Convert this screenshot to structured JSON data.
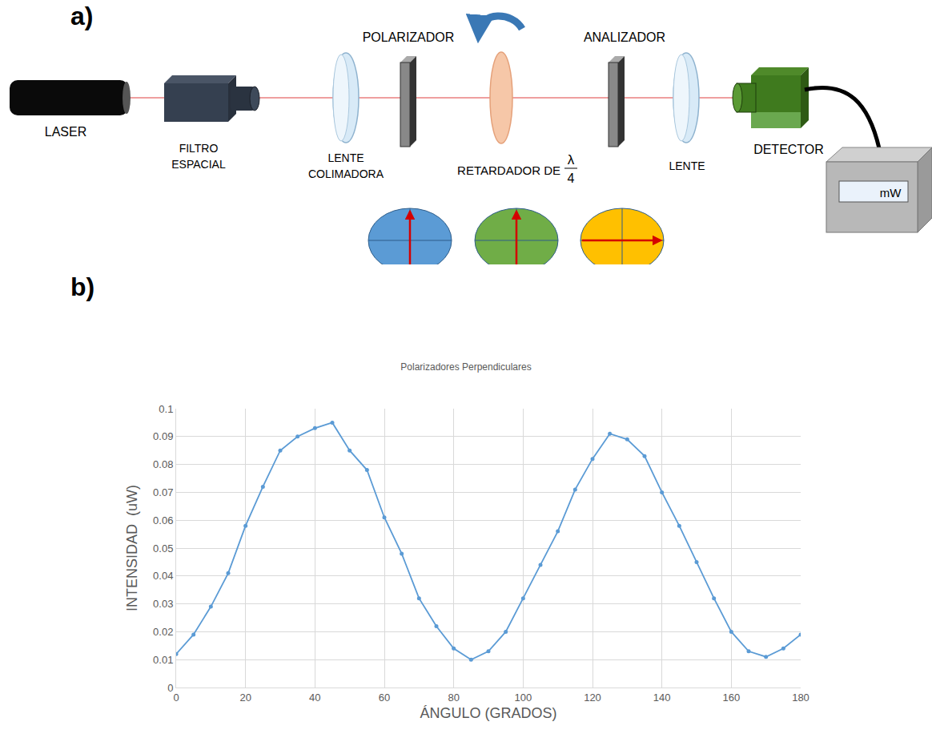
{
  "panel_labels": [
    "a)",
    "b)"
  ],
  "diagram": {
    "components": [
      {
        "label": "LASER"
      },
      {
        "label": "FILTRO ESPACIAL"
      },
      {
        "label": "LENTE COLIMADORA"
      },
      {
        "label": "POLARIZADOR"
      },
      {
        "label": "RETARDADOR DE",
        "fraction": {
          "numerator": "λ",
          "denominator": "4"
        }
      },
      {
        "label": "ANALIZADOR"
      },
      {
        "label": "LENTE"
      },
      {
        "label": "DETECTOR"
      }
    ],
    "meter_unit": "mW"
  },
  "chart_data": {
    "type": "line",
    "title": "Polarizadores Perpendiculares",
    "x_label": "ÁNGULO (GRADOS)",
    "y_label": "INTENSIDAD  (uW)",
    "x": [
      0,
      5,
      10,
      15,
      20,
      25,
      30,
      35,
      40,
      45,
      50,
      55,
      60,
      65,
      70,
      75,
      80,
      85,
      90,
      95,
      100,
      105,
      110,
      115,
      120,
      125,
      130,
      135,
      140,
      145,
      150,
      155,
      160,
      165,
      170,
      175,
      180
    ],
    "values": [
      0.012,
      0.019,
      0.029,
      0.041,
      0.058,
      0.072,
      0.085,
      0.09,
      0.093,
      0.095,
      0.085,
      0.078,
      0.061,
      0.048,
      0.032,
      0.022,
      0.014,
      0.01,
      0.013,
      0.02,
      0.032,
      0.044,
      0.056,
      0.071,
      0.082,
      0.091,
      0.089,
      0.083,
      0.07,
      0.058,
      0.045,
      0.032,
      0.02,
      0.013,
      0.011,
      0.014,
      0.019
    ],
    "color": "#5b9bd5",
    "marker": "circle",
    "line_style": "solid",
    "xlim": [
      0,
      180
    ],
    "xticks": [
      0,
      20,
      40,
      60,
      80,
      100,
      120,
      140,
      160,
      180
    ],
    "ylim": [
      0,
      0.1
    ],
    "yticks": [
      0,
      0.01,
      0.02,
      0.03,
      0.04,
      0.05,
      0.06,
      0.07,
      0.08,
      0.09,
      0.1
    ],
    "grid": true
  }
}
